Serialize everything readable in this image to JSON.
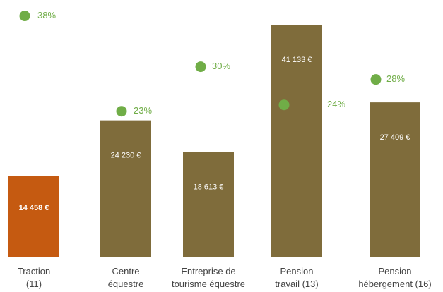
{
  "chart_data": {
    "type": "bar",
    "categories": [
      "Traction\n(11)",
      "Centre\néquestre",
      "Entreprise de\ntourisme équestre",
      "Pension\ntravail (13)",
      "Pension\nhébergement (16)"
    ],
    "series": [
      {
        "type": "bar",
        "colors": [
          "#c55a11",
          "#7f6c3b",
          "#7f6c3b",
          "#7f6c3b",
          "#7f6c3b"
        ],
        "values": [
          14458,
          24230,
          18613,
          41133,
          27409
        ],
        "value_labels": [
          "14 458 €",
          "24 230 €",
          "18 613 €",
          "41 133 €",
          "27 409 €"
        ]
      },
      {
        "type": "scatter",
        "axis": "y2",
        "color": "#70ad47",
        "values": [
          38,
          23,
          30,
          24,
          28
        ],
        "value_labels": [
          "38%",
          "23%",
          "30%",
          "24%",
          "28%"
        ]
      }
    ],
    "ylim": [
      0,
      45500
    ],
    "y2lim": [
      0,
      40.5
    ]
  }
}
